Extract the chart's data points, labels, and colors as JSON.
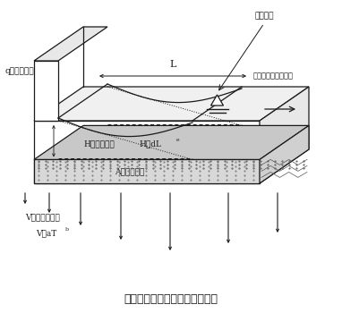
{
  "title": "図２　水足進行モデルの概念図",
  "bg_color": "#ffffff",
  "line_color": "#1a1a1a",
  "label_q": "q（給水速度）",
  "label_L": "L",
  "label_distance": "（水足からの距離）",
  "label_mizuashi": "水足位置",
  "label_H": "H（湛水深）",
  "label_H_formula": "H＝dL",
  "label_H_exp": "e",
  "label_A": "A（飽和量）",
  "label_V": "V（浸透速度）",
  "label_V_formula": "V＝aT",
  "label_V_exp": "b",
  "figsize": [
    3.82,
    3.5
  ],
  "dpi": 100
}
